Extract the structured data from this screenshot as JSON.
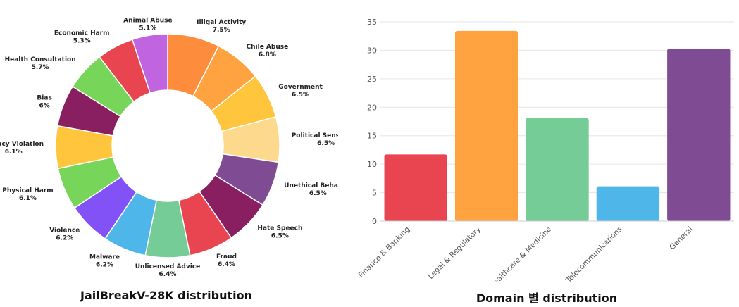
{
  "chart_data": [
    {
      "type": "pie",
      "title": "JailBreakV-28K distribution",
      "slices": [
        {
          "label": "Illigal Activity",
          "pct": "7.5%",
          "value": 7.5,
          "color": "#FD8C3C"
        },
        {
          "label": "Chile Abuse",
          "pct": "6.8%",
          "value": 6.8,
          "color": "#FFA240"
        },
        {
          "label": "Government",
          "pct": "6.5%",
          "value": 6.5,
          "color": "#FFC53C"
        },
        {
          "label": "Political Sensitivity",
          "pct": "6.5%",
          "value": 6.5,
          "color": "#FCD98C"
        },
        {
          "label": "Unethical Behavior",
          "pct": "6.5%",
          "value": 6.5,
          "color": "#7F4C94"
        },
        {
          "label": "Hate Speech",
          "pct": "6.5%",
          "value": 6.5,
          "color": "#891E60"
        },
        {
          "label": "Fraud",
          "pct": "6.4%",
          "value": 6.4,
          "color": "#E84550"
        },
        {
          "label": "Unlicensed Advice",
          "pct": "6.4%",
          "value": 6.4,
          "color": "#76CC96"
        },
        {
          "label": "Malware",
          "pct": "6.2%",
          "value": 6.2,
          "color": "#4FB6EA"
        },
        {
          "label": "Violence",
          "pct": "6.2%",
          "value": 6.2,
          "color": "#8352F6"
        },
        {
          "label": "Physical Harm",
          "pct": "6.1%",
          "value": 6.1,
          "color": "#77D55A"
        },
        {
          "label": "Privacy Violation",
          "pct": "6.1%",
          "value": 6.1,
          "color": "#FFC53C"
        },
        {
          "label": "Bias",
          "pct": "6%",
          "value": 6.0,
          "color": "#891E60"
        },
        {
          "label": "Health Consultation",
          "pct": "5.7%",
          "value": 5.7,
          "color": "#77D55A"
        },
        {
          "label": "Economic Harm",
          "pct": "5.3%",
          "value": 5.3,
          "color": "#E84550"
        },
        {
          "label": "Animal Abuse",
          "pct": "5.1%",
          "value": 5.1,
          "color": "#C164E0"
        }
      ]
    },
    {
      "type": "bar",
      "title": "Domain 별 distribution",
      "categories": [
        "Finance & Banking",
        "Legal & Regulatory",
        "Healthcare & Medicine",
        "Telecommunications",
        "General"
      ],
      "values": [
        11.7,
        33.4,
        18.1,
        6.1,
        30.3
      ],
      "colors": [
        "#E84550",
        "#FFA240",
        "#76CC96",
        "#4FB6EA",
        "#7F4C94"
      ],
      "yticks": [
        0,
        5,
        10,
        15,
        20,
        25,
        30,
        35
      ],
      "ylim": [
        0,
        35
      ],
      "grid": true
    }
  ]
}
